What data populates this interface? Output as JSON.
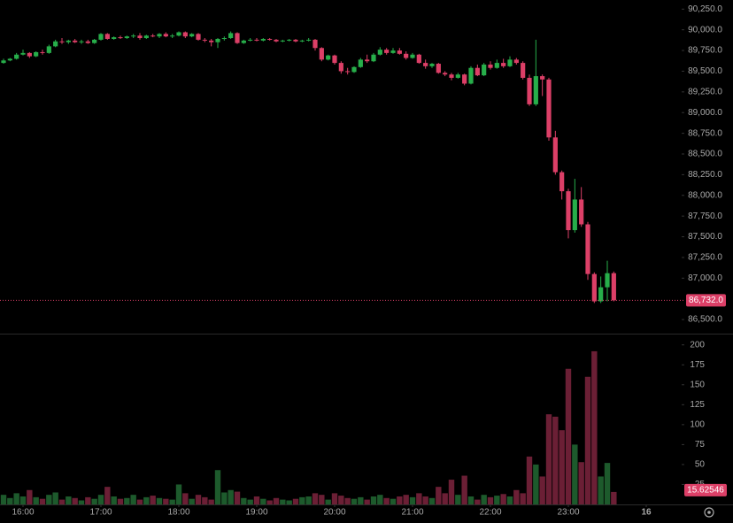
{
  "chart_data": {
    "type": "candlestick",
    "x": [
      "15:45",
      "15:50",
      "15:55",
      "16:00",
      "16:05",
      "16:10",
      "16:15",
      "16:20",
      "16:25",
      "16:30",
      "16:35",
      "16:40",
      "16:45",
      "16:50",
      "16:55",
      "17:00",
      "17:05",
      "17:10",
      "17:15",
      "17:20",
      "17:25",
      "17:30",
      "17:35",
      "17:40",
      "17:45",
      "17:50",
      "17:55",
      "18:00",
      "18:05",
      "18:10",
      "18:15",
      "18:20",
      "18:25",
      "18:30",
      "18:35",
      "18:40",
      "18:45",
      "18:50",
      "18:55",
      "19:00",
      "19:05",
      "19:10",
      "19:15",
      "19:20",
      "19:25",
      "19:30",
      "19:35",
      "19:40",
      "19:45",
      "19:50",
      "19:55",
      "20:00",
      "20:05",
      "20:10",
      "20:15",
      "20:20",
      "20:25",
      "20:30",
      "20:35",
      "20:40",
      "20:45",
      "20:50",
      "20:55",
      "21:00",
      "21:05",
      "21:10",
      "21:15",
      "21:20",
      "21:25",
      "21:30",
      "21:35",
      "21:40",
      "21:45",
      "21:50",
      "21:55",
      "22:00",
      "22:05",
      "22:10",
      "22:15",
      "22:20",
      "22:25",
      "22:30",
      "22:35",
      "22:40",
      "22:45",
      "22:50",
      "22:55",
      "23:00",
      "23:05",
      "23:10",
      "23:15",
      "23:20",
      "23:25",
      "23:30",
      "23:35"
    ],
    "open": [
      89600,
      89630,
      89650,
      89700,
      89720,
      89680,
      89730,
      89720,
      89800,
      89860,
      89850,
      89870,
      89850,
      89860,
      89840,
      89880,
      89950,
      89890,
      89910,
      89900,
      89920,
      89930,
      89900,
      89930,
      89920,
      89950,
      89920,
      89930,
      89970,
      89920,
      89950,
      89880,
      89870,
      89850,
      89890,
      89900,
      89960,
      89840,
      89870,
      89880,
      89870,
      89890,
      89880,
      89860,
      89870,
      89880,
      89860,
      89870,
      89880,
      89780,
      89640,
      89690,
      89600,
      89500,
      89490,
      89550,
      89640,
      89620,
      89700,
      89760,
      89720,
      89750,
      89710,
      89660,
      89700,
      89600,
      89560,
      89590,
      89480,
      89460,
      89420,
      89460,
      89350,
      89540,
      89450,
      89580,
      89540,
      89600,
      89560,
      89640,
      89600,
      89420,
      89100,
      89440,
      89400,
      88700,
      88280,
      88050,
      87580,
      87950,
      87650,
      87050,
      86720,
      86890,
      87060
    ],
    "high": [
      89650,
      89660,
      89720,
      89760,
      89730,
      89740,
      89760,
      89820,
      89880,
      89900,
      89880,
      89890,
      89880,
      89880,
      89890,
      89960,
      89960,
      89920,
      89930,
      89930,
      89950,
      89960,
      89940,
      89950,
      89960,
      89970,
      89950,
      89980,
      89980,
      89960,
      89960,
      89900,
      89890,
      89900,
      89920,
      89980,
      89970,
      89880,
      89900,
      89900,
      89900,
      89900,
      89890,
      89880,
      89890,
      89890,
      89880,
      89900,
      89890,
      89790,
      89700,
      89700,
      89620,
      89540,
      89560,
      89660,
      89700,
      89720,
      89790,
      89780,
      89780,
      89780,
      89740,
      89720,
      89710,
      89640,
      89600,
      89600,
      89500,
      89480,
      89480,
      89470,
      89560,
      89580,
      89600,
      89620,
      89640,
      89650,
      89680,
      89660,
      89620,
      89460,
      89880,
      89460,
      89420,
      88780,
      88300,
      88080,
      88200,
      88100,
      87680,
      87070,
      87020,
      87210,
      87080
    ],
    "low": [
      89590,
      89620,
      89640,
      89690,
      89660,
      89670,
      89700,
      89710,
      89790,
      89830,
      89830,
      89840,
      89830,
      89830,
      89830,
      89870,
      89880,
      89880,
      89890,
      89890,
      89900,
      89880,
      89890,
      89910,
      89900,
      89910,
      89900,
      89920,
      89900,
      89910,
      89870,
      89850,
      89800,
      89780,
      89870,
      89890,
      89830,
      89830,
      89860,
      89860,
      89860,
      89870,
      89850,
      89850,
      89860,
      89850,
      89850,
      89860,
      89750,
      89620,
      89630,
      89580,
      89470,
      89460,
      89480,
      89540,
      89600,
      89610,
      89690,
      89700,
      89710,
      89700,
      89640,
      89650,
      89590,
      89530,
      89540,
      89470,
      89440,
      89390,
      89410,
      89330,
      89340,
      89440,
      89440,
      89520,
      89530,
      89540,
      89550,
      89580,
      89400,
      89080,
      89080,
      89200,
      88660,
      88250,
      87950,
      87480,
      87550,
      87620,
      86980,
      86700,
      86700,
      86720,
      86720
    ],
    "close": [
      89630,
      89650,
      89700,
      89720,
      89680,
      89730,
      89720,
      89800,
      89860,
      89850,
      89870,
      89850,
      89860,
      89840,
      89880,
      89950,
      89890,
      89910,
      89900,
      89920,
      89930,
      89900,
      89930,
      89920,
      89950,
      89920,
      89930,
      89970,
      89920,
      89950,
      89880,
      89870,
      89850,
      89890,
      89900,
      89960,
      89840,
      89870,
      89880,
      89870,
      89890,
      89880,
      89860,
      89870,
      89880,
      89860,
      89870,
      89880,
      89780,
      89640,
      89690,
      89600,
      89500,
      89490,
      89550,
      89640,
      89620,
      89700,
      89760,
      89720,
      89750,
      89710,
      89660,
      89700,
      89600,
      89560,
      89590,
      89480,
      89460,
      89420,
      89460,
      89350,
      89540,
      89450,
      89580,
      89540,
      89600,
      89560,
      89640,
      89600,
      89420,
      89100,
      89440,
      89400,
      88700,
      88280,
      88050,
      87580,
      87950,
      87650,
      87050,
      86720,
      86890,
      87060,
      86732
    ],
    "volume": [
      12,
      8,
      14,
      10,
      18,
      9,
      7,
      12,
      15,
      6,
      10,
      8,
      5,
      9,
      7,
      12,
      22,
      10,
      7,
      8,
      12,
      6,
      9,
      11,
      8,
      7,
      6,
      25,
      14,
      7,
      12,
      9,
      6,
      43,
      15,
      18,
      16,
      8,
      6,
      10,
      7,
      5,
      8,
      6,
      5,
      7,
      9,
      10,
      14,
      12,
      6,
      14,
      11,
      8,
      7,
      9,
      6,
      10,
      12,
      8,
      7,
      10,
      12,
      9,
      14,
      10,
      8,
      22,
      14,
      31,
      12,
      36,
      10,
      6,
      12,
      9,
      11,
      13,
      10,
      18,
      14,
      60,
      50,
      35,
      113,
      110,
      93,
      170,
      75,
      53,
      160,
      192,
      35,
      52,
      15.62546
    ],
    "up_color": "#27ae4a",
    "down_color": "#dc3f67",
    "up_volume_color": "#1d5a2c",
    "down_volume_color": "#6b1f35",
    "ylim": [
      86330,
      90360
    ],
    "yticks": [
      {
        "value": 86500,
        "label": "86,500.0"
      },
      {
        "value": 87000,
        "label": "87,000.0"
      },
      {
        "value": 87250,
        "label": "87,250.0"
      },
      {
        "value": 87500,
        "label": "87,500.0"
      },
      {
        "value": 87750,
        "label": "87,750.0"
      },
      {
        "value": 88000,
        "label": "88,000.0"
      },
      {
        "value": 88250,
        "label": "88,250.0"
      },
      {
        "value": 88500,
        "label": "88,500.0"
      },
      {
        "value": 88750,
        "label": "88,750.0"
      },
      {
        "value": 89000,
        "label": "89,000.0"
      },
      {
        "value": 89250,
        "label": "89,250.0"
      },
      {
        "value": 89500,
        "label": "89,500.0"
      },
      {
        "value": 89750,
        "label": "89,750.0"
      },
      {
        "value": 90000,
        "label": "90,000.0"
      },
      {
        "value": 90250,
        "label": "90,250.0"
      }
    ],
    "y2lim": [
      0,
      213
    ],
    "y2ticks": [
      25,
      50,
      75,
      100,
      125,
      150,
      175,
      200
    ],
    "xticks": [
      "16:00",
      "17:00",
      "18:00",
      "19:00",
      "20:00",
      "21:00",
      "22:00",
      "23:00",
      {
        "value": "00:00",
        "label": "16"
      }
    ],
    "last_price": {
      "value": 86732,
      "label": "86,732.0"
    }
  }
}
